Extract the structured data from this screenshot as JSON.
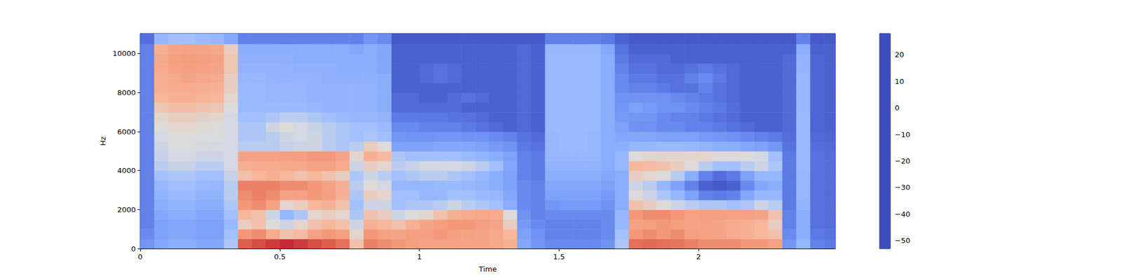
{
  "chart_data": {
    "type": "heatmap",
    "x_label": "Time",
    "y_label": "Hz",
    "grid": false,
    "xlim": [
      0,
      2.49
    ],
    "ylim": [
      0,
      11025
    ],
    "xticks": [
      0,
      0.5,
      1,
      1.5,
      2
    ],
    "yticks": [
      0,
      2000,
      4000,
      6000,
      8000,
      10000
    ],
    "x_edges": [
      0,
      0.05,
      0.1,
      0.15,
      0.2,
      0.25,
      0.3,
      0.35,
      0.4,
      0.45,
      0.5,
      0.55,
      0.6,
      0.65,
      0.7,
      0.75,
      0.8,
      0.85,
      0.9,
      0.95,
      1,
      1.05,
      1.1,
      1.15,
      1.2,
      1.25,
      1.3,
      1.35,
      1.4,
      1.45,
      1.5,
      1.55,
      1.6,
      1.65,
      1.7,
      1.75,
      1.8,
      1.85,
      1.9,
      1.95,
      2,
      2.05,
      2.1,
      2.15,
      2.2,
      2.25,
      2.3,
      2.35,
      2.4,
      2.45,
      2.49
    ],
    "y_edges": [
      0,
      500,
      1000,
      1500,
      2000,
      2500,
      3000,
      3500,
      4000,
      4500,
      5000,
      5500,
      6000,
      6500,
      7000,
      7500,
      8000,
      8500,
      9000,
      9500,
      10000,
      10500,
      11025
    ],
    "cells": [
      [
        -35,
        -30,
        -28,
        -28,
        -30,
        -30,
        -20,
        18,
        20,
        22,
        24,
        22,
        20,
        18,
        15,
        -5,
        12,
        10,
        8,
        6,
        5,
        5,
        5,
        4,
        4,
        3,
        0,
        -30,
        -35,
        -38,
        -38,
        -38,
        -38,
        -36,
        -20,
        15,
        16,
        15,
        14,
        12,
        10,
        10,
        10,
        8,
        8,
        5,
        -35,
        -25,
        -40,
        -42
      ],
      [
        -38,
        -32,
        -30,
        -30,
        -32,
        -32,
        -22,
        8,
        10,
        2,
        -5,
        -3,
        5,
        8,
        6,
        -10,
        8,
        5,
        4,
        6,
        6,
        8,
        6,
        5,
        4,
        3,
        -2,
        -32,
        -36,
        -40,
        -40,
        -40,
        -40,
        -38,
        -22,
        8,
        10,
        8,
        10,
        6,
        5,
        4,
        2,
        0,
        -2,
        -5,
        -38,
        -28,
        -42,
        -44
      ],
      [
        -40,
        -32,
        -30,
        -30,
        -32,
        -32,
        -24,
        -8,
        -5,
        -12,
        -15,
        -10,
        -5,
        -2,
        -5,
        -15,
        0,
        -2,
        -5,
        0,
        4,
        6,
        8,
        8,
        6,
        4,
        -8,
        -34,
        -38,
        -40,
        -40,
        -40,
        -40,
        -38,
        -25,
        5,
        6,
        8,
        6,
        5,
        5,
        4,
        2,
        0,
        -2,
        -8,
        -40,
        -28,
        -44,
        -45
      ],
      [
        -40,
        -30,
        -28,
        -28,
        -30,
        -30,
        -22,
        -2,
        -5,
        -15,
        -25,
        -20,
        -10,
        -8,
        -10,
        -20,
        -5,
        -8,
        -15,
        -12,
        -10,
        -5,
        0,
        2,
        3,
        2,
        -12,
        -36,
        -40,
        -38,
        -38,
        -38,
        -38,
        -38,
        -25,
        8,
        10,
        10,
        8,
        5,
        6,
        6,
        5,
        5,
        4,
        -5,
        -40,
        -28,
        -44,
        -45
      ],
      [
        -40,
        -28,
        -26,
        -26,
        -28,
        -28,
        -20,
        8,
        10,
        5,
        -10,
        -8,
        -2,
        0,
        -5,
        -22,
        -15,
        -15,
        -22,
        -20,
        -20,
        -18,
        -15,
        -18,
        -20,
        -22,
        -28,
        -38,
        -40,
        -35,
        -34,
        -34,
        -34,
        -36,
        -28,
        -5,
        -8,
        -12,
        -15,
        -18,
        -20,
        -20,
        -22,
        -20,
        -15,
        -18,
        -42,
        -26,
        -44,
        -45
      ],
      [
        -40,
        -26,
        -24,
        -24,
        -26,
        -26,
        -18,
        10,
        12,
        10,
        5,
        5,
        8,
        6,
        0,
        -20,
        -8,
        -10,
        -22,
        -22,
        -25,
        -25,
        -22,
        -22,
        -24,
        -25,
        -30,
        -38,
        -40,
        -32,
        -32,
        -32,
        -32,
        -34,
        -28,
        -12,
        -15,
        -20,
        -25,
        -32,
        -40,
        -42,
        -40,
        -30,
        -25,
        -25,
        -42,
        -25,
        -44,
        -45
      ],
      [
        -40,
        -25,
        -22,
        -22,
        -24,
        -25,
        -18,
        12,
        12,
        12,
        10,
        10,
        8,
        5,
        0,
        -18,
        -12,
        -14,
        -25,
        -25,
        -25,
        -24,
        -24,
        -25,
        -26,
        -28,
        -32,
        -38,
        -40,
        -30,
        -30,
        -30,
        -30,
        -32,
        -28,
        -15,
        -18,
        -25,
        -32,
        -40,
        -48,
        -50,
        -48,
        -38,
        -30,
        -28,
        -42,
        -25,
        -44,
        -45
      ],
      [
        -40,
        -22,
        -20,
        -20,
        -22,
        -22,
        -16,
        -5,
        -2,
        0,
        -2,
        -5,
        -2,
        -5,
        -8,
        -20,
        -15,
        -18,
        -22,
        -20,
        -18,
        -18,
        -20,
        -22,
        -25,
        -28,
        -32,
        -40,
        -42,
        -28,
        -28,
        -28,
        -28,
        -30,
        -28,
        -8,
        -10,
        -12,
        -18,
        -28,
        -40,
        -45,
        -42,
        -32,
        -25,
        -25,
        -42,
        -25,
        -44,
        -45
      ],
      [
        -40,
        -18,
        -16,
        -16,
        -18,
        -18,
        -14,
        0,
        2,
        2,
        3,
        3,
        5,
        5,
        2,
        -15,
        -8,
        -10,
        -18,
        -16,
        -14,
        -14,
        -14,
        -15,
        -18,
        -22,
        -30,
        -40,
        -42,
        -26,
        -26,
        -26,
        -26,
        -28,
        -25,
        -2,
        -3,
        -5,
        -8,
        -12,
        -18,
        -22,
        -22,
        -18,
        -15,
        -20,
        -42,
        -24,
        -44,
        -45
      ],
      [
        -40,
        -16,
        -14,
        -14,
        -15,
        -15,
        -14,
        5,
        5,
        5,
        6,
        6,
        8,
        8,
        4,
        -10,
        0,
        -3,
        -20,
        -22,
        -22,
        -22,
        -22,
        -24,
        -26,
        -28,
        -32,
        -40,
        -42,
        -25,
        -25,
        -25,
        -25,
        -28,
        -25,
        -12,
        -10,
        -10,
        -10,
        -10,
        -10,
        -12,
        -12,
        -12,
        -14,
        -22,
        -42,
        -24,
        -44,
        -45
      ],
      [
        -40,
        -15,
        -13,
        -13,
        -14,
        -14,
        -14,
        -18,
        -18,
        -18,
        -16,
        -15,
        -15,
        -18,
        -20,
        -18,
        -8,
        -12,
        -32,
        -32,
        -32,
        -30,
        -30,
        -30,
        -32,
        -34,
        -36,
        -42,
        -44,
        -25,
        -24,
        -24,
        -25,
        -28,
        -28,
        -25,
        -25,
        -24,
        -24,
        -25,
        -26,
        -28,
        -28,
        -30,
        -32,
        -35,
        -44,
        -24,
        -45,
        -46
      ],
      [
        -40,
        -14,
        -12,
        -12,
        -13,
        -13,
        -14,
        -20,
        -20,
        -18,
        -15,
        -14,
        -15,
        -18,
        -20,
        -22,
        -20,
        -22,
        -35,
        -36,
        -36,
        -35,
        -35,
        -36,
        -36,
        -38,
        -40,
        -44,
        -46,
        -25,
        -24,
        -24,
        -25,
        -28,
        -30,
        -30,
        -30,
        -32,
        -32,
        -32,
        -34,
        -35,
        -36,
        -38,
        -40,
        -42,
        -45,
        -24,
        -46,
        -47
      ],
      [
        -40,
        -12,
        -10,
        -10,
        -11,
        -12,
        -14,
        -20,
        -20,
        -15,
        -12,
        -14,
        -16,
        -18,
        -20,
        -22,
        -22,
        -24,
        -38,
        -38,
        -40,
        -40,
        -40,
        -42,
        -44,
        -46,
        -48,
        -46,
        -48,
        -24,
        -24,
        -24,
        -24,
        -28,
        -32,
        -36,
        -36,
        -38,
        -38,
        -40,
        -40,
        -42,
        -44,
        -46,
        -48,
        -48,
        -46,
        -24,
        -47,
        -48
      ],
      [
        -40,
        -10,
        -8,
        -8,
        -9,
        -10,
        -14,
        -22,
        -22,
        -20,
        -18,
        -18,
        -20,
        -22,
        -24,
        -25,
        -25,
        -26,
        -42,
        -42,
        -42,
        -42,
        -44,
        -44,
        -46,
        -48,
        -48,
        -46,
        -48,
        -24,
        -24,
        -24,
        -24,
        -28,
        -34,
        -35,
        -35,
        -38,
        -40,
        -40,
        -42,
        -44,
        -46,
        -48,
        -48,
        -48,
        -46,
        -24,
        -47,
        -48
      ],
      [
        -40,
        -6,
        -4,
        -4,
        -5,
        -6,
        -12,
        -24,
        -24,
        -24,
        -24,
        -24,
        -25,
        -26,
        -26,
        -26,
        -26,
        -28,
        -46,
        -46,
        -46,
        -46,
        -46,
        -48,
        -48,
        -48,
        -48,
        -46,
        -48,
        -24,
        -24,
        -24,
        -24,
        -28,
        -35,
        -32,
        -34,
        -36,
        -36,
        -38,
        -40,
        -42,
        -45,
        -48,
        -48,
        -48,
        -46,
        -25,
        -47,
        -48
      ],
      [
        -40,
        -2,
        0,
        0,
        -1,
        -2,
        -10,
        -24,
        -24,
        -25,
        -25,
        -25,
        -26,
        -26,
        -26,
        -26,
        -26,
        -28,
        -46,
        -46,
        -48,
        -48,
        -46,
        -44,
        -46,
        -48,
        -48,
        -46,
        -48,
        -24,
        -24,
        -24,
        -24,
        -28,
        -36,
        -36,
        -36,
        -36,
        -38,
        -40,
        -42,
        -44,
        -46,
        -48,
        -48,
        -48,
        -46,
        -25,
        -47,
        -48
      ],
      [
        -40,
        0,
        2,
        2,
        1,
        0,
        -8,
        -24,
        -24,
        -25,
        -25,
        -25,
        -26,
        -26,
        -26,
        -26,
        -26,
        -28,
        -48,
        -48,
        -48,
        -48,
        -48,
        -48,
        -48,
        -48,
        -48,
        -46,
        -48,
        -24,
        -24,
        -24,
        -24,
        -28,
        -38,
        -40,
        -40,
        -42,
        -44,
        -44,
        -40,
        -44,
        -46,
        -48,
        -48,
        -48,
        -46,
        -25,
        -47,
        -48
      ],
      [
        -40,
        0,
        3,
        4,
        3,
        2,
        -8,
        -25,
        -25,
        -26,
        -26,
        -26,
        -26,
        -27,
        -27,
        -27,
        -27,
        -28,
        -48,
        -48,
        -46,
        -44,
        -46,
        -48,
        -48,
        -48,
        -48,
        -46,
        -48,
        -24,
        -24,
        -24,
        -24,
        -28,
        -38,
        -42,
        -42,
        -44,
        -44,
        -40,
        -38,
        -42,
        -46,
        -48,
        -48,
        -48,
        -46,
        -25,
        -47,
        -48
      ],
      [
        -40,
        2,
        5,
        6,
        5,
        4,
        -6,
        -26,
        -26,
        -26,
        -26,
        -27,
        -27,
        -27,
        -28,
        -28,
        -28,
        -30,
        -48,
        -48,
        -46,
        -44,
        -46,
        -48,
        -48,
        -48,
        -48,
        -46,
        -48,
        -24,
        -24,
        -24,
        -24,
        -28,
        -40,
        -44,
        -44,
        -46,
        -46,
        -44,
        -42,
        -44,
        -46,
        -48,
        -48,
        -48,
        -46,
        -26,
        -47,
        -48
      ],
      [
        -40,
        3,
        6,
        7,
        6,
        5,
        -6,
        -27,
        -27,
        -27,
        -27,
        -28,
        -28,
        -28,
        -28,
        -28,
        -28,
        -30,
        -48,
        -48,
        -48,
        -48,
        -48,
        -48,
        -48,
        -48,
        -48,
        -46,
        -48,
        -24,
        -24,
        -24,
        -24,
        -28,
        -42,
        -46,
        -46,
        -46,
        -48,
        -48,
        -48,
        -48,
        -48,
        -48,
        -48,
        -48,
        -46,
        -26,
        -47,
        -48
      ],
      [
        -40,
        0,
        4,
        5,
        4,
        3,
        -8,
        -28,
        -28,
        -28,
        -28,
        -28,
        -28,
        -28,
        -28,
        -30,
        -28,
        -30,
        -48,
        -48,
        -48,
        -48,
        -48,
        -48,
        -48,
        -48,
        -48,
        -46,
        -48,
        -25,
        -25,
        -25,
        -25,
        -30,
        -44,
        -48,
        -48,
        -48,
        -48,
        -48,
        -48,
        -48,
        -48,
        -48,
        -48,
        -48,
        -48,
        -28,
        -48,
        -48
      ],
      [
        -45,
        -25,
        -22,
        -22,
        -24,
        -25,
        -30,
        -40,
        -40,
        -40,
        -40,
        -40,
        -40,
        -40,
        -40,
        -40,
        -35,
        -38,
        -50,
        -50,
        -50,
        -50,
        -50,
        -50,
        -50,
        -50,
        -50,
        -50,
        -50,
        -40,
        -40,
        -40,
        -40,
        -42,
        -48,
        -50,
        -50,
        -50,
        -50,
        -50,
        -50,
        -50,
        -50,
        -50,
        -50,
        -50,
        -50,
        -40,
        -50,
        -50
      ]
    ],
    "colorbar": {
      "clim": [
        -53,
        28
      ],
      "ticks": [
        {
          "value": -50,
          "label": "−50"
        },
        {
          "value": -40,
          "label": "−40"
        },
        {
          "value": -30,
          "label": "−30"
        },
        {
          "value": -20,
          "label": "−20"
        },
        {
          "value": -10,
          "label": "−10"
        },
        0,
        10,
        20
      ]
    }
  }
}
